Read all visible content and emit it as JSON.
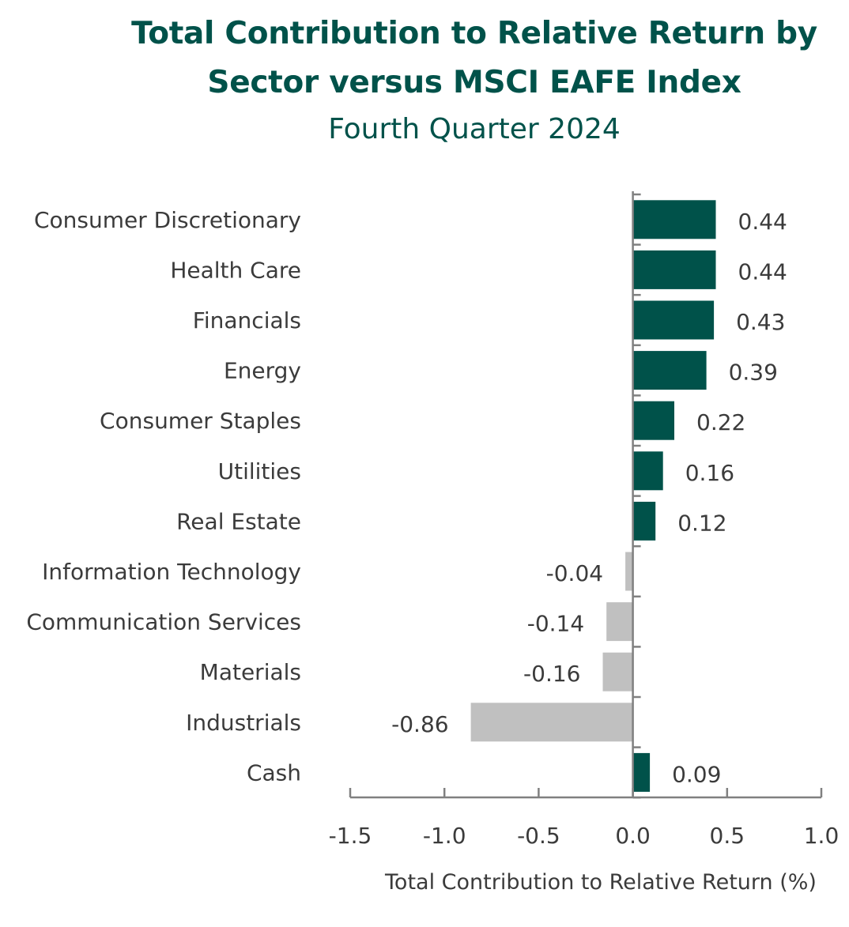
{
  "title_line1": "Total Contribution to Relative Return by",
  "title_line2": "Sector versus MSCI EAFE Index",
  "subtitle": "Fourth Quarter 2024",
  "colors": {
    "positive": "#00524a",
    "negative": "#c0c0c0",
    "title": "#00524a",
    "text": "#3b3b3b",
    "axis": "#808080"
  },
  "chart_data": {
    "type": "bar",
    "orientation": "horizontal",
    "categories": [
      "Consumer Discretionary",
      "Health Care",
      "Financials",
      "Energy",
      "Consumer Staples",
      "Utilities",
      "Real Estate",
      "Information Technology",
      "Communication Services",
      "Materials",
      "Industrials",
      "Cash"
    ],
    "values": [
      0.44,
      0.44,
      0.43,
      0.39,
      0.22,
      0.16,
      0.12,
      -0.04,
      -0.14,
      -0.16,
      -0.86,
      0.09
    ],
    "value_labels": [
      "0.44",
      "0.44",
      "0.43",
      "0.39",
      "0.22",
      "0.16",
      "0.12",
      "-0.04",
      "-0.14",
      "-0.16",
      "-0.86",
      "0.09"
    ],
    "xlabel": "Total Contribution to Relative Return (%)",
    "xlim": [
      -1.5,
      1.0
    ],
    "xticks": [
      -1.5,
      -1.0,
      -0.5,
      0.0,
      0.5,
      1.0
    ],
    "xtick_labels": [
      "-1.5",
      "-1.0",
      "-0.5",
      "0.0",
      "0.5",
      "1.0"
    ],
    "grid": false,
    "legend": "none"
  }
}
